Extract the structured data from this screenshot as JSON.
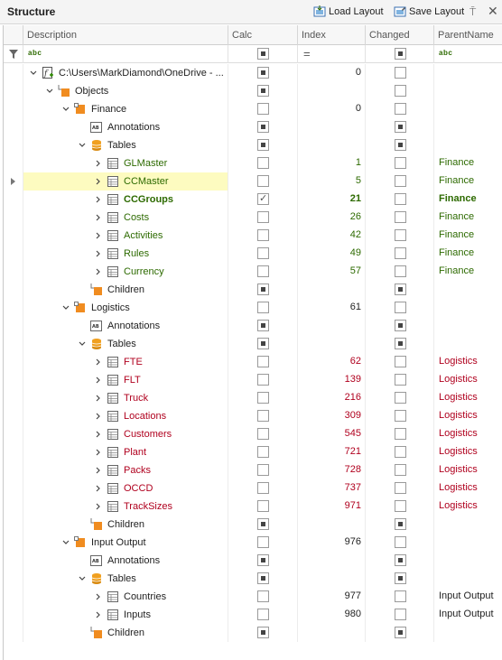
{
  "panel": {
    "title": "Structure",
    "load_layout": "Load Layout",
    "save_layout": "Save Layout",
    "pin_glyph": "⍑",
    "close_glyph": "✕"
  },
  "columns": {
    "description": "Description",
    "calc": "Calc",
    "index": "Index",
    "changed": "Changed",
    "parent": "ParentName"
  },
  "filter_row": {
    "description_op": "abc",
    "index_op": "=",
    "parent_op": "abc"
  },
  "colors": {
    "finance": "#2d6a00",
    "logistics": "#b0001e",
    "folder": "#f08c20",
    "table_icon": "#f0a020",
    "selected_row": "#fdfbc0"
  },
  "rows": [
    {
      "label": "C:\\Users\\MarkDiamond\\OneDrive - ...",
      "icon": "file-formula-icon",
      "level": 0,
      "expander": "expanded",
      "calc": "indeterminate",
      "index": "0",
      "changed": "unchecked",
      "parent": "",
      "style": ""
    },
    {
      "label": "Objects",
      "icon": "folder-tree-icon",
      "level": 1,
      "expander": "expanded",
      "calc": "indeterminate",
      "index": "",
      "changed": "unchecked",
      "parent": "",
      "style": ""
    },
    {
      "label": "Finance",
      "icon": "folder-icon",
      "level": 2,
      "expander": "expanded",
      "calc": "unchecked",
      "index": "0",
      "changed": "unchecked",
      "parent": "",
      "style": ""
    },
    {
      "label": "Annotations",
      "icon": "annotations-icon",
      "level": 3,
      "expander": "none",
      "calc": "indeterminate",
      "index": "",
      "changed": "indeterminate",
      "parent": "",
      "style": ""
    },
    {
      "label": "Tables",
      "icon": "database-icon",
      "level": 3,
      "expander": "expanded",
      "calc": "indeterminate",
      "index": "",
      "changed": "indeterminate",
      "parent": "",
      "style": ""
    },
    {
      "label": "GLMaster",
      "icon": "table-icon",
      "level": 4,
      "expander": "collapsed",
      "calc": "unchecked",
      "index": "1",
      "changed": "unchecked",
      "parent": "Finance",
      "style": "finance"
    },
    {
      "label": "CCMaster",
      "icon": "table-icon",
      "level": 4,
      "expander": "collapsed",
      "calc": "unchecked",
      "index": "5",
      "changed": "unchecked",
      "parent": "Finance",
      "style": "finance",
      "selected": true
    },
    {
      "label": "CCGroups",
      "icon": "table-icon",
      "level": 4,
      "expander": "collapsed",
      "calc": "checked",
      "index": "21",
      "changed": "unchecked",
      "parent": "Finance",
      "style": "finance",
      "bold": true
    },
    {
      "label": "Costs",
      "icon": "table-icon",
      "level": 4,
      "expander": "collapsed",
      "calc": "unchecked",
      "index": "26",
      "changed": "unchecked",
      "parent": "Finance",
      "style": "finance"
    },
    {
      "label": "Activities",
      "icon": "table-icon",
      "level": 4,
      "expander": "collapsed",
      "calc": "unchecked",
      "index": "42",
      "changed": "unchecked",
      "parent": "Finance",
      "style": "finance"
    },
    {
      "label": "Rules",
      "icon": "table-icon",
      "level": 4,
      "expander": "collapsed",
      "calc": "unchecked",
      "index": "49",
      "changed": "unchecked",
      "parent": "Finance",
      "style": "finance"
    },
    {
      "label": "Currency",
      "icon": "table-icon",
      "level": 4,
      "expander": "collapsed",
      "calc": "unchecked",
      "index": "57",
      "changed": "unchecked",
      "parent": "Finance",
      "style": "finance"
    },
    {
      "label": "Children",
      "icon": "folder-tree-icon",
      "level": 3,
      "expander": "none",
      "calc": "indeterminate",
      "index": "",
      "changed": "indeterminate",
      "parent": "",
      "style": ""
    },
    {
      "label": "Logistics",
      "icon": "folder-icon",
      "level": 2,
      "expander": "expanded",
      "calc": "unchecked",
      "index": "61",
      "changed": "unchecked",
      "parent": "",
      "style": ""
    },
    {
      "label": "Annotations",
      "icon": "annotations-icon",
      "level": 3,
      "expander": "none",
      "calc": "indeterminate",
      "index": "",
      "changed": "indeterminate",
      "parent": "",
      "style": ""
    },
    {
      "label": "Tables",
      "icon": "database-icon",
      "level": 3,
      "expander": "expanded",
      "calc": "indeterminate",
      "index": "",
      "changed": "indeterminate",
      "parent": "",
      "style": ""
    },
    {
      "label": "FTE",
      "icon": "table-icon",
      "level": 4,
      "expander": "collapsed",
      "calc": "unchecked",
      "index": "62",
      "changed": "unchecked",
      "parent": "Logistics",
      "style": "logistics"
    },
    {
      "label": "FLT",
      "icon": "table-icon",
      "level": 4,
      "expander": "collapsed",
      "calc": "unchecked",
      "index": "139",
      "changed": "unchecked",
      "parent": "Logistics",
      "style": "logistics"
    },
    {
      "label": "Truck",
      "icon": "table-icon",
      "level": 4,
      "expander": "collapsed",
      "calc": "unchecked",
      "index": "216",
      "changed": "unchecked",
      "parent": "Logistics",
      "style": "logistics"
    },
    {
      "label": "Locations",
      "icon": "table-icon",
      "level": 4,
      "expander": "collapsed",
      "calc": "unchecked",
      "index": "309",
      "changed": "unchecked",
      "parent": "Logistics",
      "style": "logistics"
    },
    {
      "label": "Customers",
      "icon": "table-icon",
      "level": 4,
      "expander": "collapsed",
      "calc": "unchecked",
      "index": "545",
      "changed": "unchecked",
      "parent": "Logistics",
      "style": "logistics"
    },
    {
      "label": "Plant",
      "icon": "table-icon",
      "level": 4,
      "expander": "collapsed",
      "calc": "unchecked",
      "index": "721",
      "changed": "unchecked",
      "parent": "Logistics",
      "style": "logistics"
    },
    {
      "label": "Packs",
      "icon": "table-icon",
      "level": 4,
      "expander": "collapsed",
      "calc": "unchecked",
      "index": "728",
      "changed": "unchecked",
      "parent": "Logistics",
      "style": "logistics"
    },
    {
      "label": "OCCD",
      "icon": "table-icon",
      "level": 4,
      "expander": "collapsed",
      "calc": "unchecked",
      "index": "737",
      "changed": "unchecked",
      "parent": "Logistics",
      "style": "logistics"
    },
    {
      "label": "TrackSizes",
      "icon": "table-icon",
      "level": 4,
      "expander": "collapsed",
      "calc": "unchecked",
      "index": "971",
      "changed": "unchecked",
      "parent": "Logistics",
      "style": "logistics"
    },
    {
      "label": "Children",
      "icon": "folder-tree-icon",
      "level": 3,
      "expander": "none",
      "calc": "indeterminate",
      "index": "",
      "changed": "indeterminate",
      "parent": "",
      "style": ""
    },
    {
      "label": "Input Output",
      "icon": "folder-icon",
      "level": 2,
      "expander": "expanded",
      "calc": "unchecked",
      "index": "976",
      "changed": "unchecked",
      "parent": "",
      "style": ""
    },
    {
      "label": "Annotations",
      "icon": "annotations-icon",
      "level": 3,
      "expander": "none",
      "calc": "indeterminate",
      "index": "",
      "changed": "indeterminate",
      "parent": "",
      "style": ""
    },
    {
      "label": "Tables",
      "icon": "database-icon",
      "level": 3,
      "expander": "expanded",
      "calc": "indeterminate",
      "index": "",
      "changed": "indeterminate",
      "parent": "",
      "style": ""
    },
    {
      "label": "Countries",
      "icon": "table-icon",
      "level": 4,
      "expander": "collapsed",
      "calc": "unchecked",
      "index": "977",
      "changed": "unchecked",
      "parent": "Input Output",
      "style": ""
    },
    {
      "label": "Inputs",
      "icon": "table-icon",
      "level": 4,
      "expander": "collapsed",
      "calc": "unchecked",
      "index": "980",
      "changed": "unchecked",
      "parent": "Input Output",
      "style": ""
    },
    {
      "label": "Children",
      "icon": "folder-tree-icon",
      "level": 3,
      "expander": "none",
      "calc": "indeterminate",
      "index": "",
      "changed": "indeterminate",
      "parent": "",
      "style": ""
    }
  ]
}
